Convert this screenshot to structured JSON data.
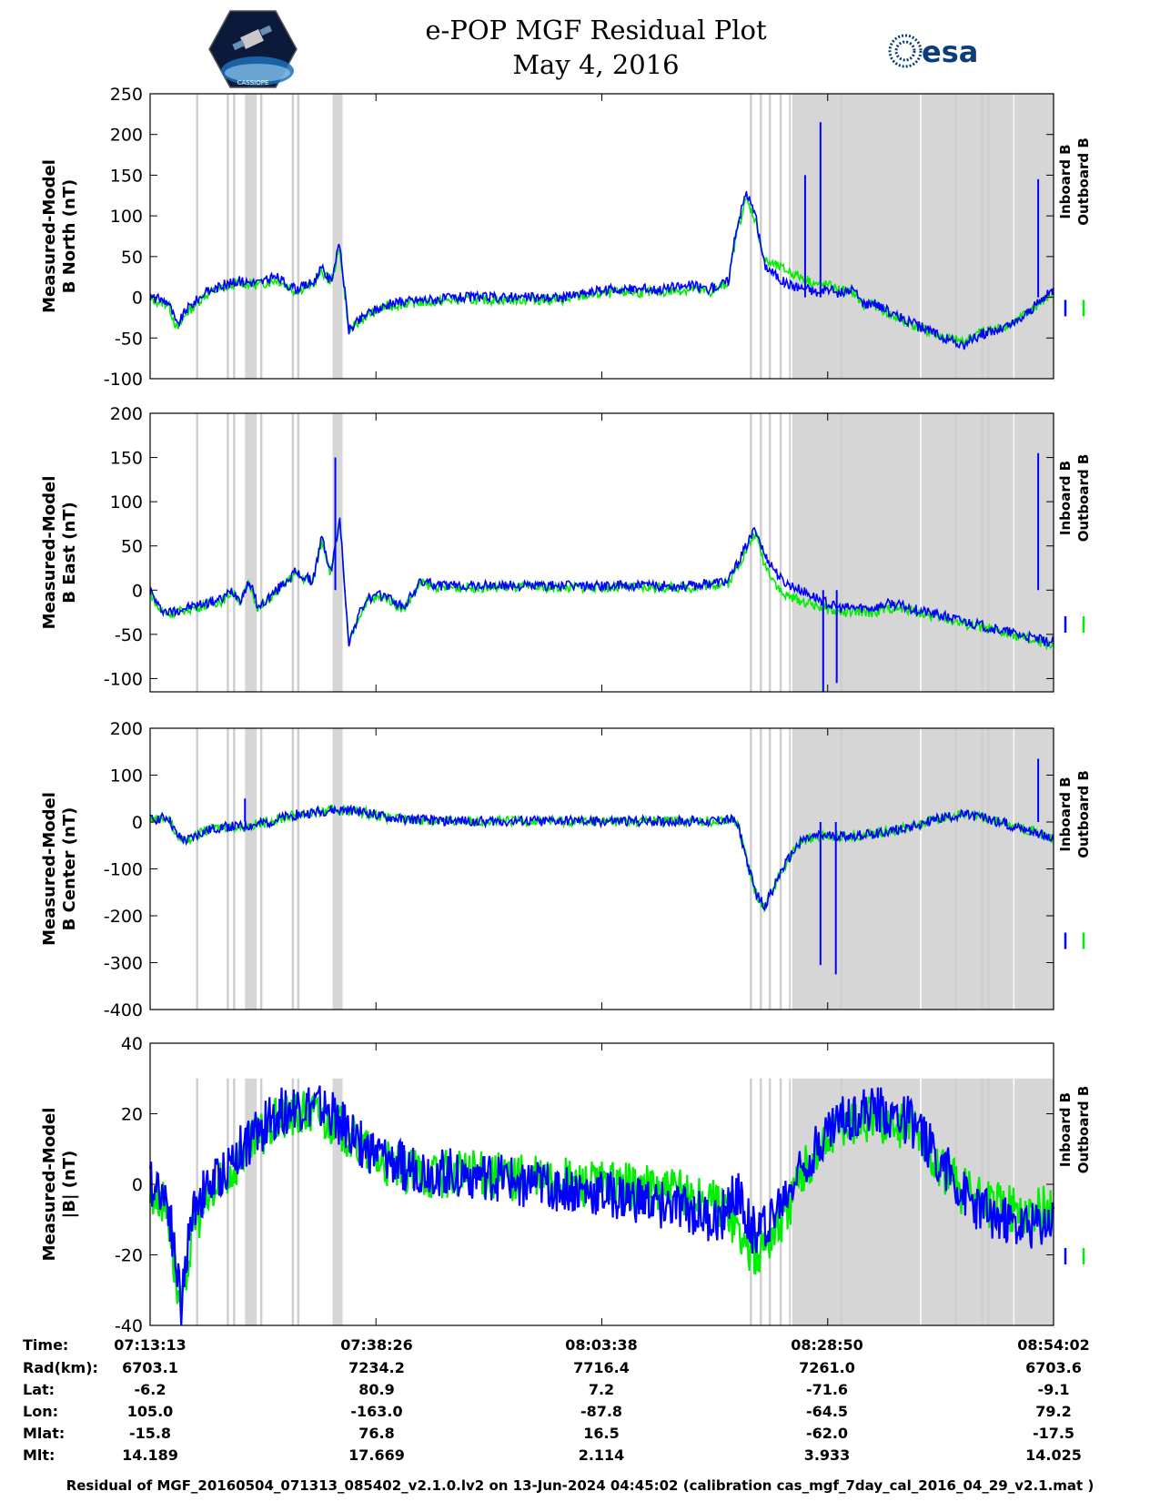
{
  "header": {
    "title_line1": "e-POP MGF Residual Plot",
    "title_line2": "May 4, 2016",
    "logo_left_text": "CASSIOPE",
    "logo_right_text": "esa"
  },
  "colors": {
    "inboard": "#0000ff",
    "outboard": "#00ee00",
    "shade": "#d6d6d6",
    "gap": "#cfcfcf"
  },
  "chart_data": [
    {
      "type": "line",
      "ylabel": "Measured-Model\nB North (nT)",
      "ylim": [
        -100,
        250
      ],
      "yticks": [
        -100,
        -50,
        0,
        50,
        100,
        150,
        200,
        250
      ],
      "legend": [
        "Inboard B",
        "Outboard B"
      ],
      "legend_position": "right",
      "x_ticks": [
        "07:13:13",
        "07:38:26",
        "08:03:38",
        "08:28:50",
        "08:54:02"
      ],
      "series": [
        {
          "name": "Inboard B",
          "x": [
            0,
            2,
            3,
            4,
            6,
            8,
            10,
            12,
            14,
            16,
            18,
            19,
            20,
            21,
            22,
            24,
            26,
            28,
            30,
            32,
            34,
            36,
            38,
            40,
            42,
            44,
            46,
            48,
            50,
            52,
            54,
            56,
            58,
            60,
            62,
            64,
            65,
            66,
            67,
            68,
            70,
            71,
            72,
            73,
            74,
            75,
            76,
            78,
            79,
            80,
            82,
            84,
            86,
            88,
            90,
            92,
            94,
            96,
            98,
            100
          ],
          "y": [
            0,
            -5,
            -35,
            -15,
            5,
            15,
            20,
            18,
            25,
            10,
            18,
            35,
            20,
            65,
            -40,
            -20,
            -10,
            -5,
            -3,
            -2,
            0,
            0,
            0,
            0,
            0,
            0,
            0,
            5,
            8,
            10,
            10,
            10,
            12,
            15,
            10,
            20,
            90,
            130,
            100,
            40,
            20,
            15,
            12,
            10,
            5,
            10,
            5,
            8,
            -10,
            -5,
            -20,
            -30,
            -40,
            -50,
            -60,
            -45,
            -40,
            -30,
            -10,
            10
          ]
        },
        {
          "name": "Outboard B",
          "x": [
            0,
            2,
            3,
            4,
            6,
            8,
            10,
            12,
            14,
            16,
            18,
            19,
            20,
            21,
            22,
            24,
            26,
            28,
            30,
            32,
            34,
            36,
            38,
            40,
            42,
            44,
            46,
            48,
            50,
            52,
            54,
            56,
            58,
            60,
            62,
            64,
            65,
            66,
            67,
            68,
            70,
            71,
            72,
            73,
            74,
            75,
            76,
            78,
            79,
            80,
            82,
            84,
            86,
            88,
            90,
            92,
            94,
            96,
            98,
            100
          ],
          "y": [
            -3,
            -8,
            -40,
            -20,
            2,
            12,
            18,
            15,
            22,
            8,
            15,
            32,
            18,
            60,
            -42,
            -22,
            -12,
            -8,
            -6,
            -5,
            -3,
            -3,
            -3,
            -3,
            -3,
            -3,
            -3,
            2,
            4,
            6,
            6,
            6,
            8,
            10,
            6,
            18,
            85,
            120,
            95,
            45,
            35,
            30,
            25,
            20,
            15,
            15,
            10,
            5,
            -12,
            -8,
            -22,
            -32,
            -42,
            -50,
            -55,
            -42,
            -38,
            -28,
            -12,
            5
          ]
        }
      ],
      "spikes": [
        {
          "x": 74.2,
          "y": 215
        },
        {
          "x": 72.5,
          "y": 150
        },
        {
          "x": 98.3,
          "y": 145
        }
      ]
    },
    {
      "type": "line",
      "ylabel": "Measured-Model\nB East (nT)",
      "ylim": [
        -115,
        200
      ],
      "yticks": [
        -100,
        -50,
        0,
        50,
        100,
        150,
        200
      ],
      "legend": [
        "Inboard B",
        "Outboard B"
      ],
      "legend_position": "right",
      "series": [
        {
          "name": "Inboard B",
          "x": [
            0,
            1,
            2,
            4,
            6,
            8,
            9,
            10,
            11,
            12,
            14,
            16,
            18,
            19,
            20,
            21,
            22,
            23,
            24,
            26,
            28,
            30,
            32,
            34,
            36,
            38,
            40,
            42,
            44,
            46,
            48,
            50,
            52,
            54,
            56,
            58,
            60,
            62,
            64,
            66,
            67,
            68,
            70,
            72,
            74,
            76,
            78,
            80,
            82,
            84,
            86,
            88,
            90,
            92,
            94,
            96,
            98,
            100
          ],
          "y": [
            0,
            -20,
            -25,
            -20,
            -15,
            -10,
            0,
            -10,
            10,
            -20,
            0,
            20,
            10,
            60,
            20,
            80,
            -60,
            -30,
            -10,
            -5,
            -20,
            10,
            5,
            5,
            5,
            5,
            5,
            5,
            5,
            5,
            5,
            5,
            5,
            5,
            5,
            5,
            5,
            8,
            10,
            50,
            70,
            40,
            10,
            0,
            -10,
            -20,
            -20,
            -20,
            -15,
            -20,
            -25,
            -30,
            -35,
            -40,
            -45,
            -50,
            -55,
            -60
          ]
        },
        {
          "name": "Outboard B",
          "x": [
            0,
            1,
            2,
            4,
            6,
            8,
            9,
            10,
            11,
            12,
            14,
            16,
            18,
            19,
            20,
            21,
            22,
            23,
            24,
            26,
            28,
            30,
            32,
            34,
            36,
            38,
            40,
            42,
            44,
            46,
            48,
            50,
            52,
            54,
            56,
            58,
            60,
            62,
            64,
            66,
            67,
            68,
            70,
            72,
            74,
            76,
            78,
            80,
            82,
            84,
            86,
            88,
            90,
            92,
            94,
            96,
            98,
            100
          ],
          "y": [
            -2,
            -22,
            -27,
            -22,
            -17,
            -12,
            -2,
            -12,
            8,
            -22,
            -2,
            18,
            8,
            58,
            18,
            78,
            -62,
            -32,
            -12,
            -7,
            -22,
            8,
            3,
            3,
            3,
            3,
            3,
            3,
            3,
            3,
            3,
            3,
            3,
            3,
            3,
            3,
            3,
            6,
            8,
            45,
            65,
            30,
            -5,
            -12,
            -18,
            -25,
            -25,
            -25,
            -20,
            -22,
            -28,
            -32,
            -38,
            -42,
            -48,
            -52,
            -58,
            -62
          ]
        }
      ],
      "spikes": [
        {
          "x": 20.5,
          "y": 150
        },
        {
          "x": 74.5,
          "y": -115
        },
        {
          "x": 76.0,
          "y": -105
        },
        {
          "x": 98.3,
          "y": 155
        }
      ]
    },
    {
      "type": "line",
      "ylabel": "Measured-Model\nB Center (nT)",
      "ylim": [
        -400,
        200
      ],
      "yticks": [
        -400,
        -300,
        -200,
        -100,
        0,
        100,
        200
      ],
      "legend": [
        "Inboard B",
        "Outboard B"
      ],
      "legend_position": "right",
      "series": [
        {
          "name": "Inboard B",
          "x": [
            0,
            2,
            3,
            4,
            6,
            8,
            10,
            12,
            14,
            16,
            18,
            20,
            22,
            24,
            26,
            28,
            30,
            32,
            34,
            36,
            38,
            40,
            42,
            44,
            46,
            48,
            50,
            52,
            54,
            56,
            58,
            60,
            62,
            64,
            65,
            66,
            67,
            68,
            70,
            72,
            74,
            76,
            78,
            80,
            82,
            84,
            86,
            88,
            90,
            92,
            94,
            96,
            98,
            100
          ],
          "y": [
            5,
            10,
            -30,
            -40,
            -20,
            -10,
            -10,
            -5,
            5,
            15,
            20,
            25,
            25,
            20,
            10,
            5,
            5,
            3,
            2,
            2,
            2,
            2,
            2,
            2,
            2,
            2,
            2,
            2,
            2,
            2,
            2,
            2,
            2,
            5,
            0,
            -80,
            -150,
            -180,
            -100,
            -40,
            -30,
            -30,
            -30,
            -25,
            -20,
            -10,
            0,
            10,
            15,
            10,
            0,
            -10,
            -20,
            -40
          ]
        },
        {
          "name": "Outboard B",
          "x": [
            0,
            2,
            3,
            4,
            6,
            8,
            10,
            12,
            14,
            16,
            18,
            20,
            22,
            24,
            26,
            28,
            30,
            32,
            34,
            36,
            38,
            40,
            42,
            44,
            46,
            48,
            50,
            52,
            54,
            56,
            58,
            60,
            62,
            64,
            65,
            66,
            67,
            68,
            70,
            72,
            74,
            76,
            78,
            80,
            82,
            84,
            86,
            88,
            90,
            92,
            94,
            96,
            98,
            100
          ],
          "y": [
            5,
            10,
            -30,
            -40,
            -20,
            -10,
            -10,
            -5,
            5,
            15,
            20,
            25,
            25,
            20,
            10,
            5,
            5,
            3,
            2,
            2,
            2,
            2,
            2,
            2,
            2,
            2,
            2,
            2,
            2,
            2,
            2,
            2,
            2,
            5,
            0,
            -80,
            -150,
            -180,
            -100,
            -40,
            -30,
            -30,
            -30,
            -25,
            -20,
            -10,
            0,
            10,
            15,
            10,
            0,
            -10,
            -20,
            -40
          ]
        }
      ],
      "spikes": [
        {
          "x": 10.5,
          "y": 50
        },
        {
          "x": 74.2,
          "y": -305
        },
        {
          "x": 75.9,
          "y": -325
        },
        {
          "x": 98.3,
          "y": 135
        }
      ]
    },
    {
      "type": "line",
      "ylabel": "Measured-Model\n|B| (nT)",
      "ylim": [
        -40,
        40
      ],
      "yticks": [
        -40,
        -20,
        0,
        20,
        40
      ],
      "legend": [
        "Inboard B",
        "Outboard B"
      ],
      "legend_position": "right",
      "series": [
        {
          "name": "Inboard B",
          "x": [
            0,
            1,
            2,
            3,
            3.5,
            4,
            5,
            6,
            8,
            10,
            12,
            14,
            16,
            18,
            20,
            22,
            24,
            26,
            28,
            30,
            35,
            40,
            45,
            50,
            55,
            60,
            62,
            63,
            64,
            65,
            66,
            67,
            70,
            72,
            74,
            76,
            78,
            80,
            82,
            84,
            86,
            88,
            90,
            92,
            94,
            96,
            98,
            100
          ],
          "y": [
            0,
            0,
            -5,
            -25,
            -35,
            -20,
            -5,
            -2,
            3,
            10,
            15,
            20,
            22,
            22,
            20,
            15,
            10,
            7,
            5,
            4,
            3,
            1,
            -1,
            -3,
            -5,
            -8,
            -10,
            -10,
            -6,
            -2,
            -10,
            -14,
            -5,
            5,
            12,
            18,
            20,
            21,
            20,
            18,
            12,
            5,
            -3,
            -7,
            -10,
            -12,
            -12,
            -10
          ]
        },
        {
          "name": "Outboard B",
          "x": [
            0,
            1,
            2,
            3,
            3.5,
            4,
            5,
            6,
            8,
            10,
            12,
            14,
            16,
            18,
            20,
            22,
            24,
            26,
            28,
            30,
            35,
            40,
            45,
            50,
            55,
            60,
            62,
            63,
            64,
            65,
            66,
            67,
            70,
            72,
            74,
            76,
            78,
            80,
            82,
            84,
            86,
            88,
            90,
            92,
            94,
            96,
            98,
            100
          ],
          "y": [
            -3,
            -3,
            -8,
            -30,
            -38,
            -25,
            -10,
            -6,
            0,
            8,
            13,
            18,
            20,
            20,
            18,
            14,
            9,
            6,
            4,
            3,
            3,
            2,
            1,
            0,
            -1,
            -3,
            -5,
            -6,
            -8,
            -12,
            -18,
            -20,
            -10,
            2,
            10,
            16,
            18,
            19,
            18,
            16,
            10,
            3,
            -2,
            -5,
            -6,
            -8,
            -8,
            -6
          ]
        }
      ],
      "spikes": []
    }
  ],
  "time_axis": {
    "labels": [
      "Time:",
      "Rad(km):",
      "Lat:",
      "Lon:",
      "Mlat:",
      "Mlt:"
    ],
    "columns": [
      {
        "time": "07:13:13",
        "rad": "6703.1",
        "lat": "-6.2",
        "lon": "105.0",
        "mlat": "-15.8",
        "mlt": "14.189"
      },
      {
        "time": "07:38:26",
        "rad": "7234.2",
        "lat": "80.9",
        "lon": "-163.0",
        "mlat": "76.8",
        "mlt": "17.669"
      },
      {
        "time": "08:03:38",
        "rad": "7716.4",
        "lat": "7.2",
        "lon": "-87.8",
        "mlat": "16.5",
        "mlt": "2.114"
      },
      {
        "time": "08:28:50",
        "rad": "7261.0",
        "lat": "-71.6",
        "lon": "-64.5",
        "mlat": "-62.0",
        "mlt": "3.933"
      },
      {
        "time": "08:54:02",
        "rad": "6703.6",
        "lat": "-9.1",
        "lon": "79.2",
        "mlat": "-17.5",
        "mlt": "14.025"
      }
    ]
  },
  "shading": {
    "thin_lines_pct": [
      5.2,
      8.6,
      9.3,
      12.3,
      15.8,
      16.4,
      66.5,
      67.6,
      68.6,
      69.8,
      76.5,
      89.2,
      92.1,
      92.8
    ],
    "bands_pct": [
      [
        10.5,
        11.8
      ],
      [
        20.2,
        21.3
      ],
      [
        70.7,
        100
      ]
    ]
  },
  "footer": "Residual of MGF_20160504_071313_085402_v2.1.0.lv2 on 13-Jun-2024 04:45:02 (calibration cas_mgf_7day_cal_2016_04_29_v2.1.mat )"
}
